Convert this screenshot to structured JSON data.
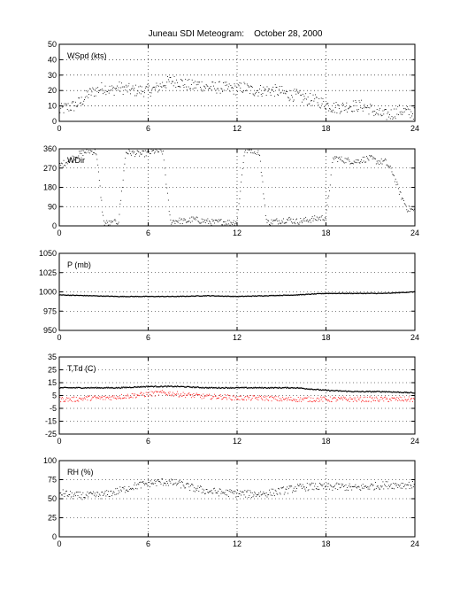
{
  "title": "Juneau SDI Meteogram:    October 28, 2000",
  "x_ticks": [
    "0",
    "6",
    "12",
    "18",
    "24"
  ],
  "chart_data": [
    {
      "type": "scatter",
      "label": "WSpd (kts)",
      "xlim": [
        0,
        24
      ],
      "ylim": [
        0,
        50
      ],
      "yticks": [
        "0",
        "10",
        "20",
        "30",
        "40",
        "50"
      ],
      "grid": true,
      "series": [
        {
          "color": "#000000",
          "points": [
            [
              0,
              7
            ],
            [
              0.5,
              9
            ],
            [
              1,
              10
            ],
            [
              1.5,
              13
            ],
            [
              2,
              18
            ],
            [
              2.5,
              20
            ],
            [
              3,
              22
            ],
            [
              3.5,
              20
            ],
            [
              4,
              22
            ],
            [
              4.5,
              21
            ],
            [
              5,
              20
            ],
            [
              5.5,
              20
            ],
            [
              6,
              20
            ],
            [
              6.5,
              21
            ],
            [
              7,
              24
            ],
            [
              7.5,
              26
            ],
            [
              8,
              26
            ],
            [
              8.5,
              24
            ],
            [
              9,
              23
            ],
            [
              9.5,
              24
            ],
            [
              10,
              22
            ],
            [
              10.5,
              22
            ],
            [
              11,
              22
            ],
            [
              11.5,
              21
            ],
            [
              12,
              21
            ],
            [
              12.5,
              22
            ],
            [
              13,
              20
            ],
            [
              13.5,
              20
            ],
            [
              14,
              20
            ],
            [
              14.5,
              20
            ],
            [
              15,
              19
            ],
            [
              15.5,
              17
            ],
            [
              16,
              17
            ],
            [
              16.5,
              15
            ],
            [
              17,
              14
            ],
            [
              17.5,
              13
            ],
            [
              18,
              11
            ],
            [
              18.5,
              9
            ],
            [
              19,
              9
            ],
            [
              19.5,
              10
            ],
            [
              20,
              10
            ],
            [
              20.5,
              10
            ],
            [
              21,
              8
            ],
            [
              21.5,
              5
            ],
            [
              22,
              4
            ],
            [
              22.5,
              5
            ],
            [
              23,
              7
            ],
            [
              23.5,
              6
            ],
            [
              24,
              5
            ]
          ]
        }
      ]
    },
    {
      "type": "scatter",
      "label": "WDir",
      "xlim": [
        0,
        24
      ],
      "ylim": [
        0,
        360
      ],
      "yticks": [
        "0",
        "90",
        "180",
        "270",
        "360"
      ],
      "grid": true,
      "series": [
        {
          "color": "#000000",
          "points": [
            [
              0,
              280
            ],
            [
              0.5,
              300
            ],
            [
              1,
              320
            ],
            [
              1.5,
              340
            ],
            [
              2,
              350
            ],
            [
              2.5,
              345
            ],
            [
              3,
              15
            ],
            [
              3.5,
              10
            ],
            [
              4,
              20
            ],
            [
              4.5,
              345
            ],
            [
              5,
              340
            ],
            [
              5.5,
              335
            ],
            [
              6,
              340
            ],
            [
              6.5,
              350
            ],
            [
              7,
              345
            ],
            [
              7.5,
              20
            ],
            [
              8,
              25
            ],
            [
              8.5,
              20
            ],
            [
              9,
              30
            ],
            [
              9.5,
              25
            ],
            [
              10,
              20
            ],
            [
              10.5,
              15
            ],
            [
              11,
              20
            ],
            [
              11.5,
              15
            ],
            [
              12,
              20
            ],
            [
              12.5,
              350
            ],
            [
              13,
              355
            ],
            [
              13.5,
              345
            ],
            [
              14,
              15
            ],
            [
              14.5,
              20
            ],
            [
              15,
              25
            ],
            [
              15.5,
              30
            ],
            [
              16,
              20
            ],
            [
              16.5,
              25
            ],
            [
              17,
              30
            ],
            [
              17.5,
              35
            ],
            [
              18,
              40
            ],
            [
              18.5,
              320
            ],
            [
              19,
              310
            ],
            [
              19.5,
              305
            ],
            [
              20,
              300
            ],
            [
              20.5,
              310
            ],
            [
              21,
              315
            ],
            [
              21.5,
              300
            ],
            [
              22,
              300
            ],
            [
              22.5,
              250
            ],
            [
              23,
              150
            ],
            [
              23.5,
              80
            ],
            [
              24,
              70
            ]
          ]
        }
      ]
    },
    {
      "type": "line",
      "label": "P (mb)",
      "xlim": [
        0,
        24
      ],
      "ylim": [
        950,
        1050
      ],
      "yticks": [
        "950",
        "975",
        "1000",
        "1025",
        "1050"
      ],
      "grid": true,
      "series": [
        {
          "color": "#000000",
          "points": [
            [
              0,
              996
            ],
            [
              2,
              995
            ],
            [
              4,
              994
            ],
            [
              6,
              994
            ],
            [
              8,
              994
            ],
            [
              10,
              995
            ],
            [
              12,
              994
            ],
            [
              14,
              995
            ],
            [
              16,
              996
            ],
            [
              18,
              998
            ],
            [
              20,
              998
            ],
            [
              22,
              998
            ],
            [
              24,
              1000
            ]
          ]
        }
      ]
    },
    {
      "type": "line",
      "label": "T,Td (C)",
      "xlim": [
        0,
        24
      ],
      "ylim": [
        -25,
        35
      ],
      "yticks": [
        "-25",
        "-15",
        "-5",
        "5",
        "15",
        "25",
        "35"
      ],
      "grid": true,
      "series": [
        {
          "color": "#000000",
          "points": [
            [
              0,
              11
            ],
            [
              2,
              11
            ],
            [
              4,
              11
            ],
            [
              6,
              12
            ],
            [
              8,
              12
            ],
            [
              10,
              11
            ],
            [
              12,
              11
            ],
            [
              14,
              11
            ],
            [
              16,
              11
            ],
            [
              18,
              9
            ],
            [
              20,
              8
            ],
            [
              22,
              8
            ],
            [
              24,
              7
            ]
          ]
        },
        {
          "color": "#ff0000",
          "points": [
            [
              0,
              2
            ],
            [
              1,
              2
            ],
            [
              2,
              3
            ],
            [
              3,
              3
            ],
            [
              4,
              4
            ],
            [
              5,
              5
            ],
            [
              6,
              6
            ],
            [
              7,
              7
            ],
            [
              8,
              6
            ],
            [
              9,
              5
            ],
            [
              10,
              4
            ],
            [
              11,
              4
            ],
            [
              12,
              3
            ],
            [
              13,
              3
            ],
            [
              14,
              3
            ],
            [
              15,
              2
            ],
            [
              16,
              2
            ],
            [
              17,
              2
            ],
            [
              18,
              2
            ],
            [
              19,
              2
            ],
            [
              20,
              2
            ],
            [
              21,
              2
            ],
            [
              22,
              2
            ],
            [
              23,
              2
            ],
            [
              24,
              2
            ]
          ]
        }
      ]
    },
    {
      "type": "scatter",
      "label": "RH (%)",
      "xlim": [
        0,
        24
      ],
      "ylim": [
        0,
        100
      ],
      "yticks": [
        "0",
        "25",
        "50",
        "75",
        "100"
      ],
      "grid": true,
      "series": [
        {
          "color": "#000000",
          "points": [
            [
              0,
              58
            ],
            [
              1,
              54
            ],
            [
              2,
              54
            ],
            [
              3,
              55
            ],
            [
              4,
              60
            ],
            [
              5,
              66
            ],
            [
              6,
              70
            ],
            [
              7,
              72
            ],
            [
              8,
              70
            ],
            [
              9,
              64
            ],
            [
              10,
              60
            ],
            [
              11,
              58
            ],
            [
              12,
              57
            ],
            [
              13,
              56
            ],
            [
              14,
              57
            ],
            [
              15,
              60
            ],
            [
              16,
              64
            ],
            [
              17,
              66
            ],
            [
              18,
              65
            ],
            [
              19,
              66
            ],
            [
              20,
              64
            ],
            [
              21,
              66
            ],
            [
              22,
              68
            ],
            [
              23,
              68
            ],
            [
              24,
              68
            ]
          ]
        }
      ]
    }
  ]
}
